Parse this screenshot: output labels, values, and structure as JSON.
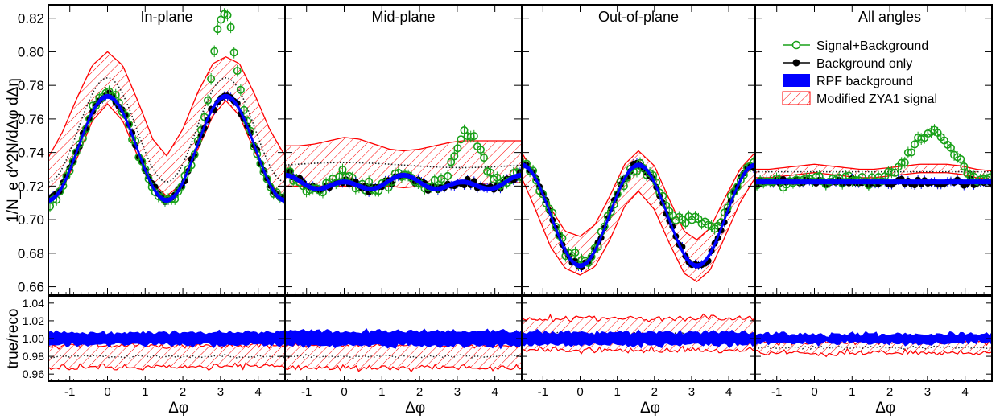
{
  "chart_data": {
    "type": "scatter",
    "ylabel_top": "1/N_e d^2N/dΔφ dΔη",
    "ylabel_bottom": "true/reco",
    "xlabel": "Δφ",
    "xlim": [
      -1.5708,
      4.7124
    ],
    "ylim_top": [
      0.655,
      0.828
    ],
    "ylim_bottom": [
      0.952,
      1.048
    ],
    "xticks": [
      -1,
      0,
      1,
      2,
      3,
      4
    ],
    "yticks_top": [
      0.66,
      0.68,
      0.7,
      0.72,
      0.74,
      0.76,
      0.78,
      0.8,
      0.82
    ],
    "yticks_bottom": [
      0.96,
      0.98,
      1.0,
      1.02,
      1.04
    ],
    "tick_labels_top": [
      "0.66",
      "0.68",
      "0.70",
      "0.72",
      "0.74",
      "0.76",
      "0.78",
      "0.80",
      "0.82"
    ],
    "tick_labels_bottom": [
      "0.96",
      "0.98",
      "1.00",
      "1.02",
      "1.04"
    ],
    "tick_labels_x": [
      "-1",
      "0",
      "1",
      "2",
      "3",
      "4"
    ],
    "legend": [
      {
        "label": "Signal+Background",
        "color": "#18a018",
        "style": "open-circle"
      },
      {
        "label": "Background only",
        "color": "#000000",
        "style": "filled-circle"
      },
      {
        "label": "RPF background",
        "color": "#0000ff",
        "style": "band"
      },
      {
        "label": "Modified ZYA1 signal",
        "color": "#ff0000",
        "style": "hatched-band"
      }
    ],
    "panels": [
      {
        "title": "In-plane",
        "background_curve": {
          "base": 0.7425,
          "a1": 0.0,
          "a2": 0.031,
          "a4": 0.0
        },
        "signal_band": {
          "x": [
            -1.5708,
            -1.2,
            -0.8,
            -0.4,
            0.0,
            0.4,
            0.8,
            1.2,
            1.57,
            2.0,
            2.4,
            2.8,
            3.14,
            3.5,
            3.9,
            4.3,
            4.71
          ],
          "upper": [
            0.737,
            0.752,
            0.773,
            0.792,
            0.8,
            0.792,
            0.771,
            0.748,
            0.738,
            0.754,
            0.776,
            0.793,
            0.797,
            0.793,
            0.775,
            0.754,
            0.738
          ],
          "lower": [
            0.711,
            0.718,
            0.737,
            0.759,
            0.769,
            0.759,
            0.738,
            0.722,
            0.714,
            0.722,
            0.742,
            0.762,
            0.771,
            0.762,
            0.741,
            0.723,
            0.711
          ]
        },
        "mid_curve": {
          "base": 0.7425,
          "a2": 0.031,
          "offset_peak": 0.011
        },
        "signal_points": {
          "peak_near": 0.004,
          "peak_away": 0.05,
          "away_center": 3.1,
          "away_width": 0.26,
          "noise": 0.003
        },
        "ratio_band": {
          "center": 1.0,
          "half": 0.007
        },
        "ratio_signal": {
          "center": 0.98,
          "half": 0.012
        }
      },
      {
        "title": "Mid-plane",
        "background_curve": {
          "base": 0.7215,
          "a1": 0.0,
          "a2": -0.002,
          "a4": 0.003
        },
        "signal_band": {
          "x": [
            -1.5708,
            -1.2,
            -0.8,
            -0.4,
            0.0,
            0.4,
            0.8,
            1.2,
            1.57,
            2.0,
            2.4,
            2.8,
            3.14,
            3.5,
            3.9,
            4.3,
            4.71
          ],
          "upper": [
            0.744,
            0.744,
            0.745,
            0.747,
            0.749,
            0.748,
            0.745,
            0.742,
            0.741,
            0.742,
            0.744,
            0.746,
            0.747,
            0.747,
            0.747,
            0.747,
            0.747
          ],
          "lower": [
            0.72,
            0.72,
            0.72,
            0.72,
            0.72,
            0.72,
            0.72,
            0.72,
            0.719,
            0.72,
            0.72,
            0.721,
            0.721,
            0.721,
            0.722,
            0.722,
            0.722
          ]
        },
        "mid_curve": {
          "base": 0.7315,
          "a2": 0.0,
          "offset_peak": 0.0
        },
        "signal_points": {
          "peak_near": 0.005,
          "peak_away": 0.03,
          "away_center": 3.3,
          "away_width": 0.35,
          "noise": 0.004
        },
        "ratio_band": {
          "center": 1.0,
          "half": 0.008
        },
        "ratio_signal": {
          "center": 0.98,
          "half": 0.013
        }
      },
      {
        "title": "Out-of-plane",
        "background_curve": {
          "base": 0.7025,
          "a1": 0.0,
          "a2": -0.03,
          "a4": 0.0
        },
        "signal_band": {
          "x": [
            -1.5708,
            -1.2,
            -0.8,
            -0.4,
            0.0,
            0.4,
            0.8,
            1.2,
            1.57,
            2.0,
            2.4,
            2.8,
            3.14,
            3.5,
            3.9,
            4.3,
            4.71
          ],
          "upper": [
            0.74,
            0.726,
            0.707,
            0.693,
            0.69,
            0.697,
            0.714,
            0.733,
            0.741,
            0.732,
            0.712,
            0.693,
            0.688,
            0.695,
            0.713,
            0.73,
            0.74
          ],
          "lower": [
            0.725,
            0.706,
            0.684,
            0.671,
            0.667,
            0.672,
            0.688,
            0.708,
            0.717,
            0.706,
            0.686,
            0.668,
            0.663,
            0.67,
            0.69,
            0.71,
            0.725
          ]
        },
        "mid_curve": {
          "base": 0.703,
          "a2": -0.03,
          "offset_peak": 0.0
        },
        "signal_points": {
          "peak_near": 0.003,
          "peak_away": 0.028,
          "away_center": 3.1,
          "away_width": 0.4,
          "noise": 0.004
        },
        "ratio_band": {
          "center": 1.0,
          "half": 0.007
        },
        "ratio_signal": {
          "center": 1.005,
          "half": 0.018
        }
      },
      {
        "title": "All angles",
        "background_curve": {
          "base": 0.7225,
          "a1": 0.0,
          "a2": 0.0,
          "a4": 0.0
        },
        "signal_band": {
          "x": [
            -1.5708,
            -1.2,
            -0.8,
            -0.4,
            0.0,
            0.4,
            0.8,
            1.2,
            1.57,
            2.0,
            2.4,
            2.8,
            3.14,
            3.5,
            3.9,
            4.3,
            4.71
          ],
          "upper": [
            0.73,
            0.73,
            0.731,
            0.732,
            0.733,
            0.732,
            0.731,
            0.73,
            0.73,
            0.731,
            0.732,
            0.733,
            0.733,
            0.733,
            0.732,
            0.73,
            0.729
          ],
          "lower": [
            0.725,
            0.725,
            0.726,
            0.727,
            0.728,
            0.727,
            0.726,
            0.725,
            0.725,
            0.726,
            0.727,
            0.728,
            0.728,
            0.728,
            0.727,
            0.725,
            0.724
          ]
        },
        "mid_curve": {
          "base": 0.7285,
          "a2": 0.0,
          "offset_peak": 0.0
        },
        "signal_points": {
          "peak_near": 0.003,
          "peak_away": 0.03,
          "away_center": 3.1,
          "away_width": 0.55,
          "noise": 0.003
        },
        "ratio_band": {
          "center": 1.0,
          "half": 0.005
        },
        "ratio_signal": {
          "center": 0.99,
          "half": 0.006
        }
      }
    ]
  }
}
